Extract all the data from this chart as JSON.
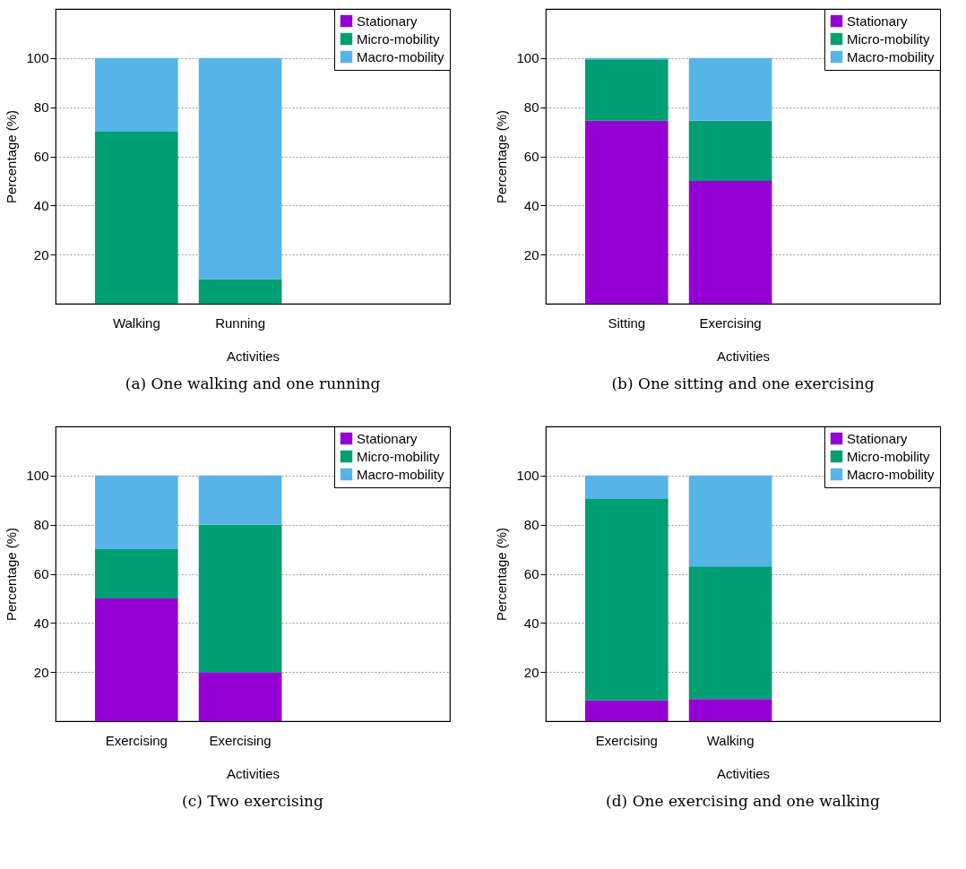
{
  "chart_data": [
    {
      "type": "bar",
      "stacked": true,
      "title": "(a) One walking and one running",
      "xlabel": "Activities",
      "ylabel": "Percentage (%)",
      "categories": [
        "Walking",
        "Running"
      ],
      "ylim": [
        0,
        120
      ],
      "yticks": [
        20,
        40,
        60,
        80,
        100
      ],
      "grid": "y",
      "legend": "top right",
      "series": [
        {
          "name": "Stationary",
          "color": "#9400d3",
          "values": [
            0,
            0
          ]
        },
        {
          "name": "Micro-mobility",
          "color": "#009e73",
          "values": [
            70,
            10
          ]
        },
        {
          "name": "Macro-mobility",
          "color": "#56b4e9",
          "values": [
            30,
            90
          ]
        }
      ]
    },
    {
      "type": "bar",
      "stacked": true,
      "title": "(b) One sitting and one exercising",
      "xlabel": "Activities",
      "ylabel": "Percentage (%)",
      "categories": [
        "Sitting",
        "Exercising"
      ],
      "ylim": [
        0,
        120
      ],
      "yticks": [
        20,
        40,
        60,
        80,
        100
      ],
      "grid": "y",
      "legend": "top right",
      "series": [
        {
          "name": "Stationary",
          "color": "#9400d3",
          "values": [
            74.5,
            50
          ]
        },
        {
          "name": "Micro-mobility",
          "color": "#009e73",
          "values": [
            25,
            24.5
          ]
        },
        {
          "name": "Macro-mobility",
          "color": "#56b4e9",
          "values": [
            0.5,
            25.5
          ]
        }
      ]
    },
    {
      "type": "bar",
      "stacked": true,
      "title": "(c) Two exercising",
      "xlabel": "Activities",
      "ylabel": "Percentage (%)",
      "categories": [
        "Exercising",
        "Exercising"
      ],
      "ylim": [
        0,
        120
      ],
      "yticks": [
        20,
        40,
        60,
        80,
        100
      ],
      "grid": "y",
      "legend": "top right",
      "series": [
        {
          "name": "Stationary",
          "color": "#9400d3",
          "values": [
            50,
            20
          ]
        },
        {
          "name": "Micro-mobility",
          "color": "#009e73",
          "values": [
            20,
            60
          ]
        },
        {
          "name": "Macro-mobility",
          "color": "#56b4e9",
          "values": [
            30,
            20
          ]
        }
      ]
    },
    {
      "type": "bar",
      "stacked": true,
      "title": "(d) One exercising and one walking",
      "xlabel": "Activities",
      "ylabel": "Percentage (%)",
      "categories": [
        "Exercising",
        "Walking"
      ],
      "ylim": [
        0,
        120
      ],
      "yticks": [
        20,
        40,
        60,
        80,
        100
      ],
      "grid": "y",
      "legend": "top right",
      "series": [
        {
          "name": "Stationary",
          "color": "#9400d3",
          "values": [
            8.5,
            9
          ]
        },
        {
          "name": "Micro-mobility",
          "color": "#009e73",
          "values": [
            82,
            54
          ]
        },
        {
          "name": "Macro-mobility",
          "color": "#56b4e9",
          "values": [
            9.5,
            37
          ]
        }
      ]
    }
  ]
}
